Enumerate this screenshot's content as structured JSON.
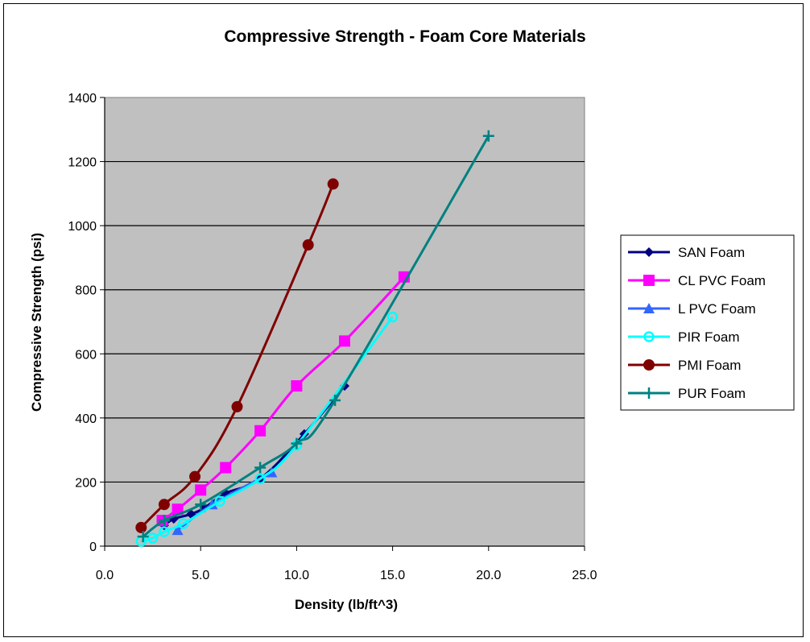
{
  "chart_data": {
    "type": "scatter",
    "title": "Compressive Strength - Foam Core Materials",
    "xlabel": "Density (lb/ft^3)",
    "ylabel": "Compressive Strength (psi)",
    "xlim": [
      0,
      25
    ],
    "ylim": [
      0,
      1400
    ],
    "x_ticks": [
      "0.0",
      "5.0",
      "10.0",
      "15.0",
      "20.0",
      "25.0"
    ],
    "y_ticks": [
      "0",
      "200",
      "400",
      "600",
      "800",
      "1000",
      "1200",
      "1400"
    ],
    "grid": "horizontal",
    "plot_background": "#c0c0c0",
    "legend_position": "right",
    "series": [
      {
        "name": "SAN Foam",
        "color": "#000080",
        "marker": "diamond",
        "x": [
          3.1,
          3.6,
          4.5,
          5.2,
          6.3,
          8.1,
          10.4,
          12.5
        ],
        "y": [
          65,
          85,
          100,
          120,
          165,
          210,
          350,
          500
        ]
      },
      {
        "name": "CL PVC Foam",
        "color": "#ff00ff",
        "marker": "square",
        "x": [
          3.0,
          3.8,
          5.0,
          6.3,
          8.1,
          10.0,
          12.5,
          15.6
        ],
        "y": [
          80,
          115,
          175,
          245,
          360,
          500,
          640,
          840
        ]
      },
      {
        "name": "L PVC Foam",
        "color": "#3366ff",
        "marker": "triangle",
        "x": [
          3.8,
          5.6,
          8.7
        ],
        "y": [
          50,
          130,
          230
        ]
      },
      {
        "name": "PIR Foam",
        "color": "#00ffff",
        "marker": "circle-open",
        "x": [
          1.9,
          2.5,
          3.1,
          4.1,
          6.0,
          8.1,
          10.0,
          15.0
        ],
        "y": [
          15,
          25,
          45,
          70,
          140,
          210,
          315,
          715
        ]
      },
      {
        "name": "PMI Foam",
        "color": "#800000",
        "marker": "circle",
        "x": [
          1.9,
          3.1,
          4.7,
          6.9,
          10.6,
          11.9
        ],
        "y": [
          58,
          130,
          217,
          435,
          940,
          1130
        ]
      },
      {
        "name": "PUR Foam",
        "color": "#008080",
        "marker": "plus",
        "x": [
          2.0,
          3.1,
          5.0,
          8.1,
          10.0,
          12.0,
          20.0
        ],
        "y": [
          30,
          80,
          130,
          245,
          320,
          455,
          1280
        ]
      }
    ]
  }
}
